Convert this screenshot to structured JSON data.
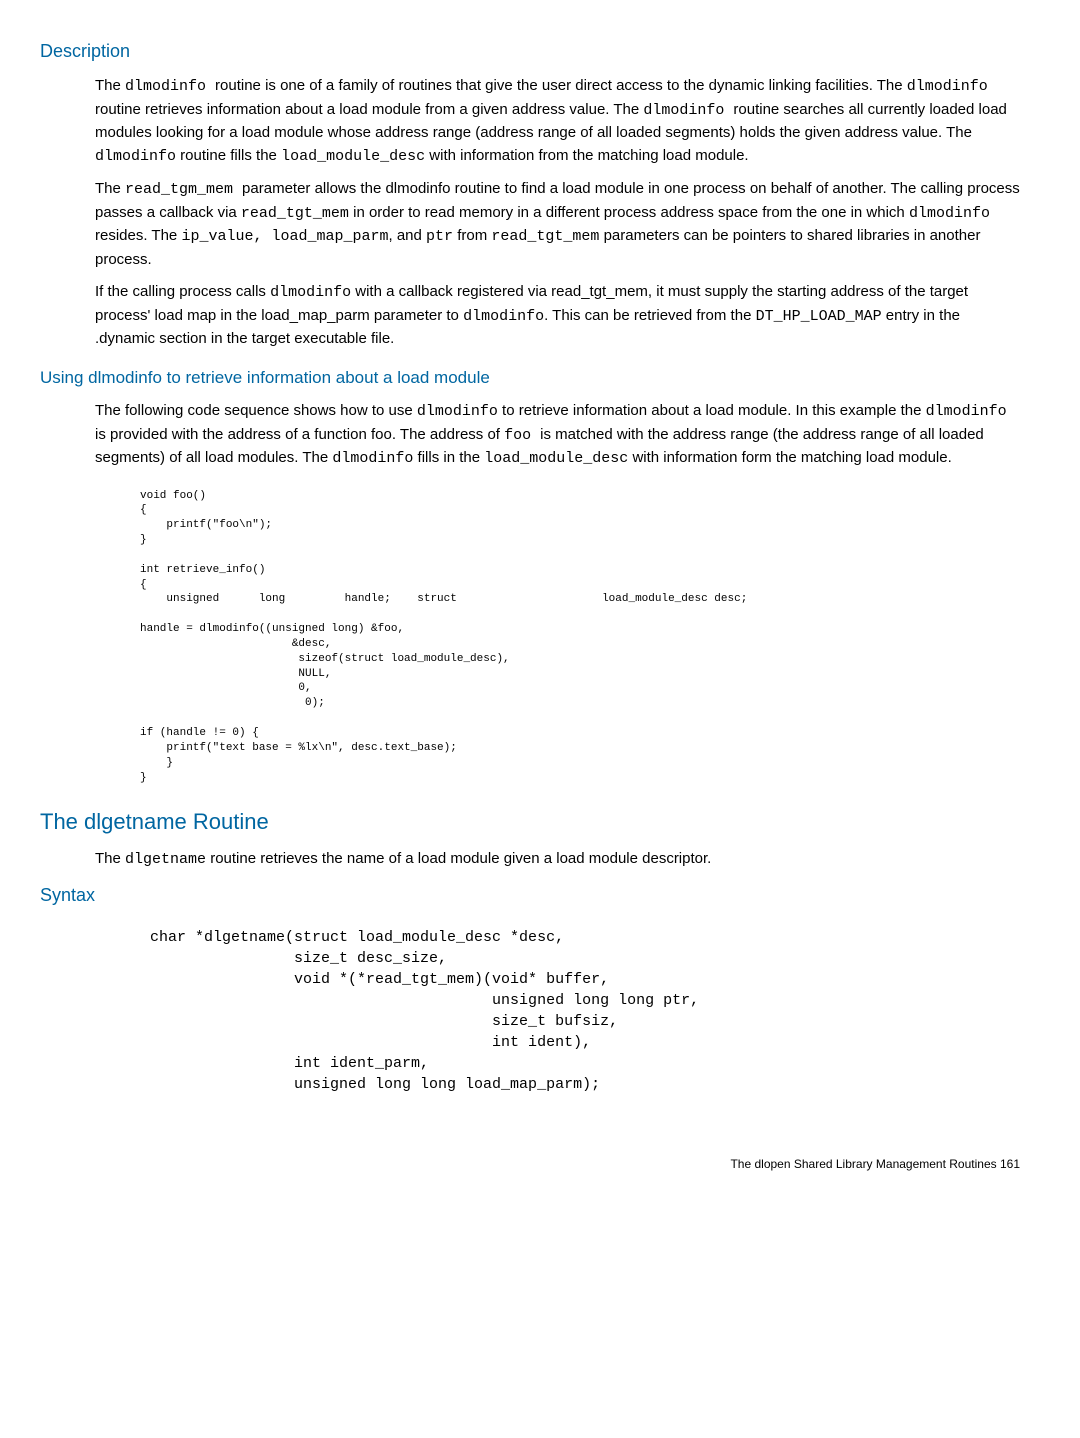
{
  "h_description": "Description",
  "desc_p1_a": "The ",
  "desc_p1_b": "dlmodinfo ",
  "desc_p1_c": " routine is one of a family of routines that give the user direct access to the dynamic linking facilities. The ",
  "desc_p1_d": "dlmodinfo",
  "desc_p1_e": " routine retrieves information about a load module from a given address value. The ",
  "desc_p1_f": "dlmodinfo ",
  "desc_p1_g": " routine searches all currently loaded load modules looking for a load module whose address range (address range of all loaded segments) holds the given address value. The ",
  "desc_p1_h": "dlmodinfo",
  "desc_p1_i": " routine fills the ",
  "desc_p1_j": "load_module_desc",
  "desc_p1_k": " with information from the matching load module.",
  "desc_p2_a": "The ",
  "desc_p2_b": " read_tgm_mem ",
  "desc_p2_c": " parameter allows the dlmodinfo routine to find a load module in one process on behalf of another. The calling process passes a callback via ",
  "desc_p2_d": "read_tgt_mem",
  "desc_p2_e": " in order to read memory in a different process address space from the one in which ",
  "desc_p2_f": "dlmodinfo",
  "desc_p2_g": " resides. The ",
  "desc_p2_h": "ip_value, ",
  "desc_p2_i": " load_map_parm",
  "desc_p2_j": ", and ",
  "desc_p2_k": "ptr",
  "desc_p2_l": " from ",
  "desc_p2_m": "read_tgt_mem",
  "desc_p2_n": " parameters can be pointers to shared libraries in another process.",
  "desc_p3_a": "If the calling process calls ",
  "desc_p3_b": "dlmodinfo",
  "desc_p3_c": " with a callback registered via read_tgt_mem, it must supply the starting address of the target process' load map in the load_map_parm parameter to ",
  "desc_p3_d": "dlmodinfo",
  "desc_p3_e": ". This can be retrieved from the ",
  "desc_p3_f": "DT_HP_LOAD_MAP",
  "desc_p3_g": " entry in the .dynamic section in the target executable file.",
  "h_using": "Using dlmodinfo to retrieve information about a load module",
  "using_p1_a": "The following code sequence shows how to use ",
  "using_p1_b": "dlmodinfo",
  "using_p1_c": " to retrieve information about a load module. In this example the ",
  "using_p1_d": "dlmodinfo",
  "using_p1_e": " is provided with the address of a function foo. The address of ",
  "using_p1_f": "foo ",
  "using_p1_g": " is matched with the address range (the address range of all loaded segments) of all load modules. The ",
  "using_p1_h": "dlmodinfo",
  "using_p1_i": " fills in the ",
  "using_p1_j": "load_module_desc",
  "using_p1_k": " with information form the matching load module.",
  "code1": "void foo()\n{\n    printf(\"foo\\n\");\n}\n\nint retrieve_info()\n{\n    unsigned      long         handle;    struct                      load_module_desc desc;\n\nhandle = dlmodinfo((unsigned long) &foo,\n                       &desc,\n                        sizeof(struct load_module_desc),\n                        NULL,\n                        0,\n                         0);\n\nif (handle != 0) {\n    printf(\"text base = %lx\\n\", desc.text_base);\n    }\n}",
  "h_routine": "The dlgetname Routine",
  "routine_p1_a": "The ",
  "routine_p1_b": "dlgetname",
  "routine_p1_c": " routine retrieves the name of a load module given a load module descriptor.",
  "h_syntax": "Syntax",
  "code2": "char *dlgetname(struct load_module_desc *desc,\n                size_t desc_size,\n                void *(*read_tgt_mem)(void* buffer,\n                                      unsigned long long ptr,\n                                      size_t bufsiz,\n                                      int ident),\n                int ident_parm,\n                unsigned long long load_map_parm);",
  "footer": "The dlopen Shared Library Management Routines    161"
}
